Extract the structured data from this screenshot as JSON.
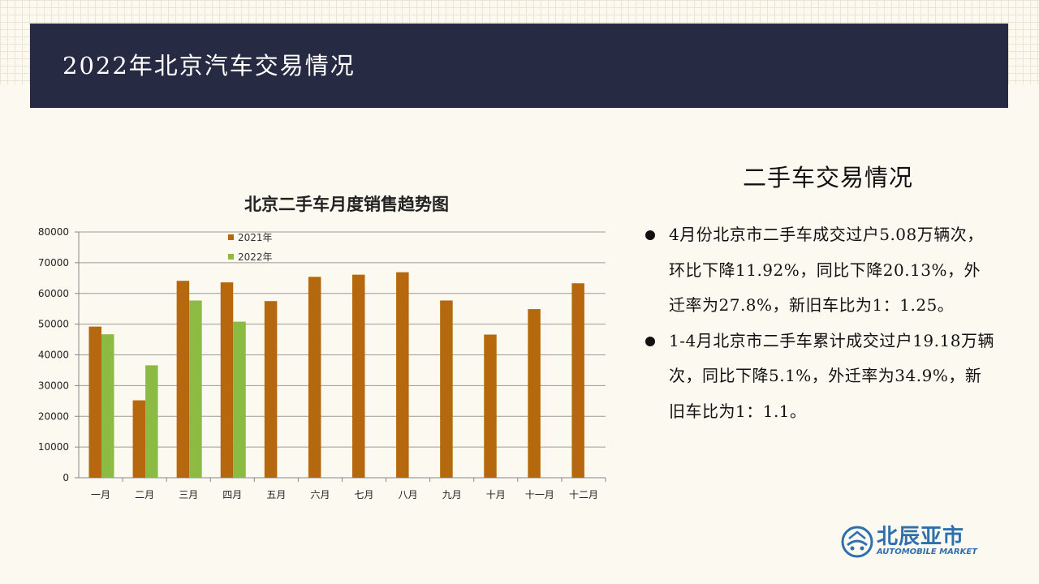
{
  "header": {
    "title": "2022年北京汽车交易情况"
  },
  "section": {
    "title": "二手车交易情况",
    "bullets": [
      "4月份北京市二手车成交过户5.08万辆次，环比下降11.92%，同比下降20.13%，外迁率为27.8%，新旧车比为1：1.25。",
      "1-4月北京市二手车累计成交过户19.18万辆次，同比下降5.1%，外迁率为34.9%，新旧车比为1：1.1。"
    ]
  },
  "logo": {
    "cn": "北辰亚市",
    "en": "AUTOMOBILE MARKET",
    "icon": "globe-car-icon"
  },
  "colors": {
    "header_bg": "#262a43",
    "series_2021": "#b5680d",
    "series_2022": "#8cbb43",
    "logo": "#2e6fae"
  },
  "chart_data": {
    "type": "bar",
    "title": "北京二手车月度销售趋势图",
    "categories": [
      "一月",
      "二月",
      "三月",
      "四月",
      "五月",
      "六月",
      "七月",
      "八月",
      "九月",
      "十月",
      "十一月",
      "十二月"
    ],
    "series": [
      {
        "name": "2021年",
        "color": "#b5680d",
        "values": [
          49200,
          25200,
          64100,
          63600,
          57500,
          65400,
          66100,
          66900,
          57700,
          46600,
          54900,
          63300
        ]
      },
      {
        "name": "2022年",
        "color": "#8cbb43",
        "values": [
          46700,
          36600,
          57700,
          50800,
          null,
          null,
          null,
          null,
          null,
          null,
          null,
          null
        ]
      }
    ],
    "ylim": [
      0,
      80000
    ],
    "yticks": [
      0,
      10000,
      20000,
      30000,
      40000,
      50000,
      60000,
      70000,
      80000
    ],
    "grid": true,
    "legend": "top-left"
  }
}
